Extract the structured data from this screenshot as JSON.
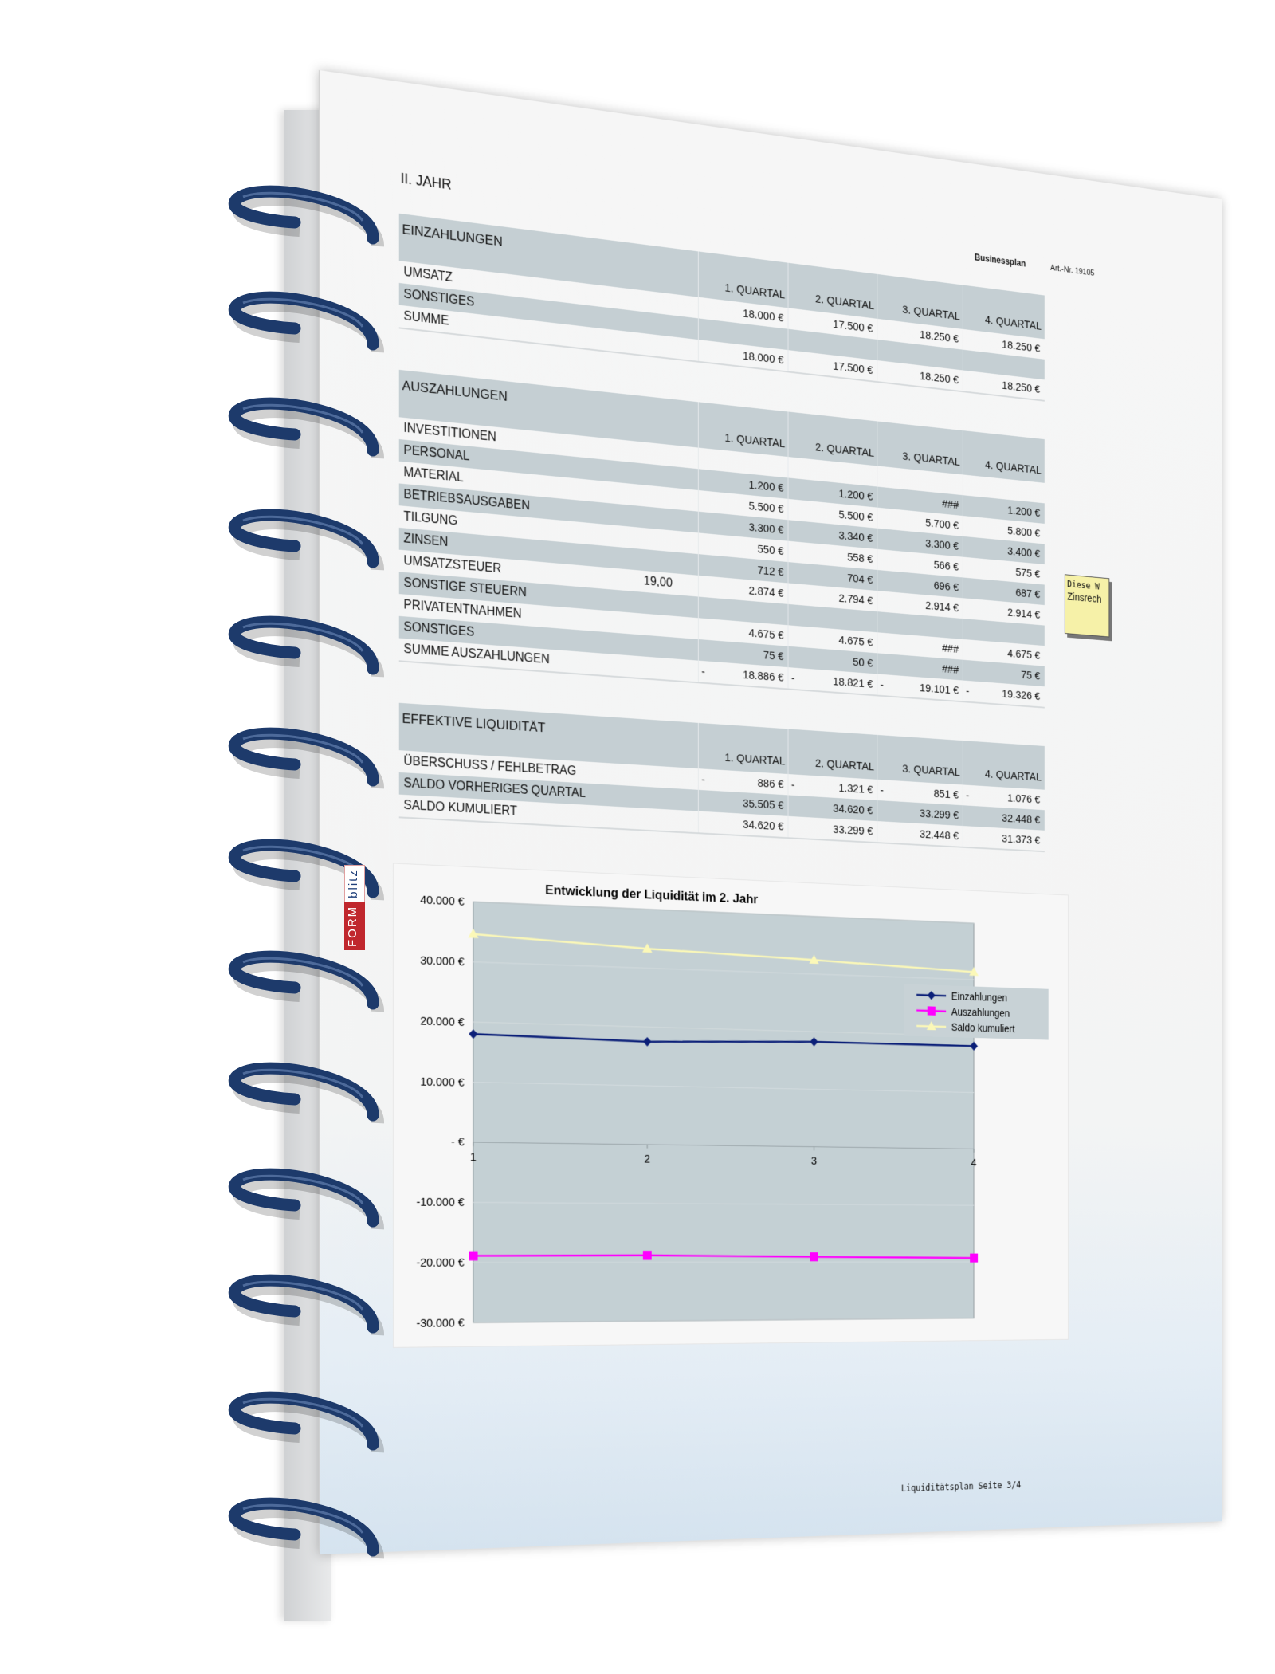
{
  "page": {
    "year_title": "II. JAHR",
    "brand": "Businessplan",
    "art_nr": "Art.-Nr. 19105",
    "footer": "Liquiditätsplan Seite 3/4",
    "logo": "FORMblitz"
  },
  "tables": [
    {
      "title": "EINZAHLUNGEN",
      "columns": [
        "1. QUARTAL",
        "2. QUARTAL",
        "3. QUARTAL",
        "4. QUARTAL"
      ],
      "rows": [
        {
          "label": "UMSATZ",
          "extra": "",
          "signs": [
            "",
            "",
            "",
            ""
          ],
          "values": [
            "18.000 €",
            "17.500 €",
            "18.250 €",
            "18.250 €"
          ]
        },
        {
          "label": "SONSTIGES",
          "extra": "",
          "signs": [
            "",
            "",
            "",
            ""
          ],
          "values": [
            "",
            "",
            "",
            ""
          ]
        },
        {
          "label": "SUMME",
          "extra": "",
          "signs": [
            "",
            "",
            "",
            ""
          ],
          "values": [
            "18.000 €",
            "17.500 €",
            "18.250 €",
            "18.250 €"
          ]
        }
      ]
    },
    {
      "title": "AUSZAHLUNGEN",
      "columns": [
        "1. QUARTAL",
        "2. QUARTAL",
        "3. QUARTAL",
        "4. QUARTAL"
      ],
      "rows": [
        {
          "label": "INVESTITIONEN",
          "extra": "",
          "signs": [
            "",
            "",
            "",
            ""
          ],
          "values": [
            "",
            "",
            "",
            ""
          ]
        },
        {
          "label": "PERSONAL",
          "extra": "",
          "signs": [
            "",
            "",
            "",
            ""
          ],
          "values": [
            "1.200 €",
            "1.200 €",
            "###",
            "1.200 €"
          ]
        },
        {
          "label": "MATERIAL",
          "extra": "",
          "signs": [
            "",
            "",
            "",
            ""
          ],
          "values": [
            "5.500 €",
            "5.500 €",
            "5.700 €",
            "5.800 €"
          ]
        },
        {
          "label": "BETRIEBSAUSGABEN",
          "extra": "",
          "signs": [
            "",
            "",
            "",
            ""
          ],
          "values": [
            "3.300 €",
            "3.340 €",
            "3.300 €",
            "3.400 €"
          ]
        },
        {
          "label": "TILGUNG",
          "extra": "",
          "signs": [
            "",
            "",
            "",
            ""
          ],
          "values": [
            "550 €",
            "558 €",
            "566 €",
            "575 €"
          ]
        },
        {
          "label": "ZINSEN",
          "extra": "",
          "signs": [
            "",
            "",
            "",
            ""
          ],
          "values": [
            "712 €",
            "704 €",
            "696 €",
            "687 €"
          ]
        },
        {
          "label": "UMSATZSTEUER",
          "extra": "19,00",
          "signs": [
            "",
            "",
            "",
            ""
          ],
          "values": [
            "2.874 €",
            "2.794 €",
            "2.914 €",
            "2.914 €"
          ]
        },
        {
          "label": "SONSTIGE STEUERN",
          "extra": "",
          "signs": [
            "",
            "",
            "",
            ""
          ],
          "values": [
            "",
            "",
            "",
            ""
          ]
        },
        {
          "label": "PRIVATENTNAHMEN",
          "extra": "",
          "signs": [
            "",
            "",
            "",
            ""
          ],
          "values": [
            "4.675 €",
            "4.675 €",
            "###",
            "4.675 €"
          ]
        },
        {
          "label": "SONSTIGES",
          "extra": "",
          "signs": [
            "",
            "",
            "",
            ""
          ],
          "values": [
            "75 €",
            "50 €",
            "###",
            "75 €"
          ]
        },
        {
          "label": "SUMME AUSZAHLUNGEN",
          "extra": "",
          "signs": [
            "-",
            "-",
            "-",
            "-"
          ],
          "values": [
            "18.886 €",
            "18.821 €",
            "19.101 €",
            "19.326 €"
          ]
        }
      ]
    },
    {
      "title": "EFFEKTIVE LIQUIDITÄT",
      "columns": [
        "1. QUARTAL",
        "2. QUARTAL",
        "3. QUARTAL",
        "4. QUARTAL"
      ],
      "rows": [
        {
          "label": "ÜBERSCHUSS / FEHLBETRAG",
          "extra": "",
          "signs": [
            "-",
            "-",
            "-",
            "-"
          ],
          "values": [
            "886 €",
            "1.321 €",
            "851 €",
            "1.076 €"
          ]
        },
        {
          "label": "SALDO VORHERIGES QUARTAL",
          "extra": "",
          "signs": [
            "",
            "",
            "",
            ""
          ],
          "values": [
            "35.505 €",
            "34.620 €",
            "33.299 €",
            "32.448 €"
          ]
        },
        {
          "label": "SALDO KUMULIERT",
          "extra": "",
          "signs": [
            "",
            "",
            "",
            ""
          ],
          "values": [
            "34.620 €",
            "33.299 €",
            "32.448 €",
            "31.373 €"
          ]
        }
      ]
    }
  ],
  "note": {
    "line1": "Diese W",
    "line2": "Zinsrech"
  },
  "chart_data": {
    "type": "line",
    "title": "Entwicklung der Liquidität im 2. Jahr",
    "x": [
      1,
      2,
      3,
      4
    ],
    "x_tick_labels": [
      "1",
      "2",
      "3",
      "4"
    ],
    "ylim": [
      -30000,
      40000
    ],
    "y_ticks": [
      40000,
      30000,
      20000,
      10000,
      0,
      -10000,
      -20000,
      -30000
    ],
    "y_tick_labels": [
      "40.000 €",
      "30.000 €",
      "20.000 €",
      "10.000 €",
      "- €",
      "-10.000 €",
      "-20.000 €",
      "-30.000 €"
    ],
    "grid": true,
    "legend_position": "right",
    "plot_background": "#c4d0d4",
    "series": [
      {
        "name": "Einzahlungen",
        "values": [
          18000,
          17500,
          18250,
          18250
        ],
        "color": "#0b1f78",
        "marker": "diamond"
      },
      {
        "name": "Auszahlungen",
        "values": [
          -18886,
          -18821,
          -19101,
          -19326
        ],
        "color": "#ff00ff",
        "marker": "square"
      },
      {
        "name": "Saldo kumuliert",
        "values": [
          34620,
          33299,
          32448,
          31373
        ],
        "color": "#fbf8b8",
        "marker": "triangle"
      }
    ]
  },
  "colors": {
    "band": "#c5cfd3",
    "spiral": "#1d3a6b",
    "note": "#f6f1a8"
  }
}
